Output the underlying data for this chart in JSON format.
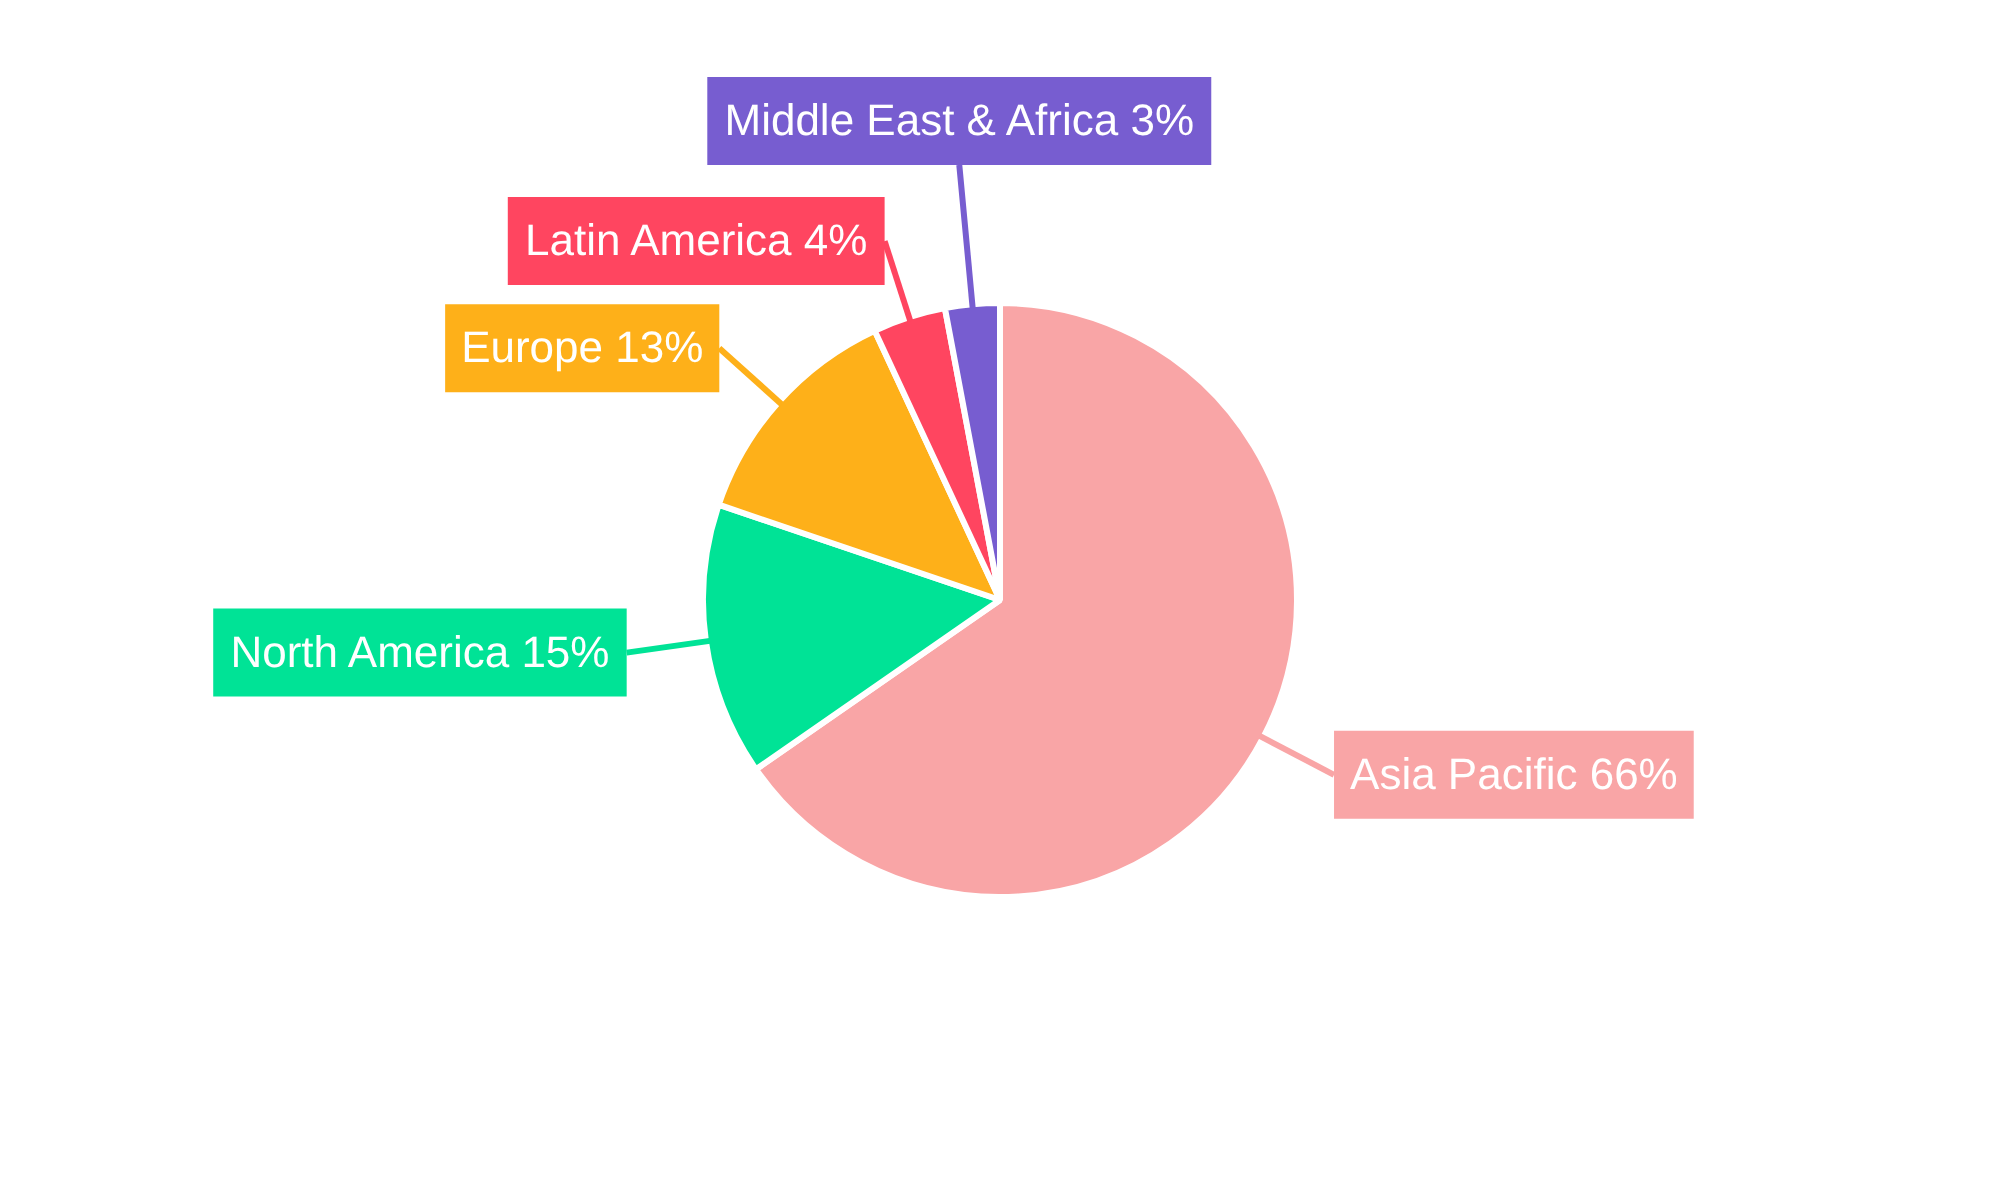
{
  "chart_data": {
    "type": "pie",
    "categories": [
      "Asia Pacific",
      "North America",
      "Europe",
      "Latin America",
      "Middle East & Africa"
    ],
    "values": [
      66,
      15,
      13,
      4,
      3
    ],
    "value_labels": [
      "66%",
      "15%",
      "13%",
      "4%",
      "3%"
    ],
    "colors": [
      "#f9a5a6",
      "#00e396",
      "#feb019",
      "#ff4560",
      "#775dd0"
    ],
    "legend": false
  }
}
